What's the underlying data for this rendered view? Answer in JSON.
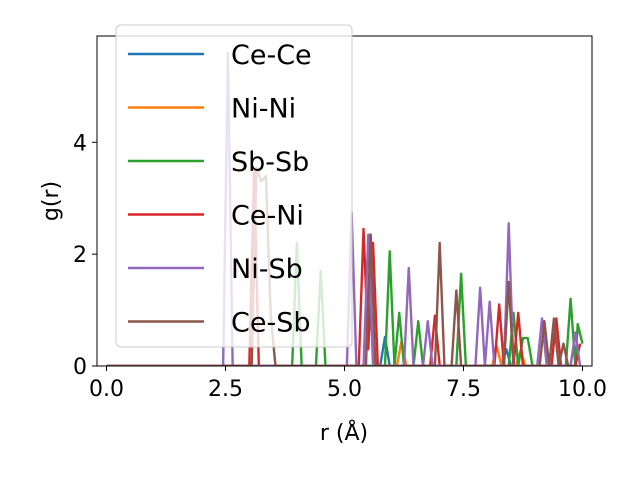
{
  "chart_data": {
    "type": "line",
    "title": "",
    "xlabel": "r (Å)",
    "ylabel": "g(r)",
    "xlim": [
      -0.2,
      10.2
    ],
    "ylim": [
      0,
      5.9
    ],
    "xticks": [
      0.0,
      2.5,
      5.0,
      7.5,
      10.0
    ],
    "xtick_labels": [
      "0.0",
      "2.5",
      "5.0",
      "7.5",
      "10.0"
    ],
    "yticks": [
      0,
      2,
      4
    ],
    "ytick_labels": [
      "0",
      "2",
      "4"
    ],
    "grid": false,
    "legend_position": "top-left",
    "series": [
      {
        "name": "Ce-Ce",
        "color": "#1f77b4",
        "points": [
          [
            0,
            0
          ],
          [
            5.75,
            0
          ],
          [
            5.85,
            0.52
          ],
          [
            5.95,
            0
          ],
          [
            8.3,
            0
          ],
          [
            8.4,
            0.3
          ],
          [
            8.5,
            0
          ],
          [
            9.9,
            0
          ]
        ]
      },
      {
        "name": "Ni-Ni",
        "color": "#ff7f0e",
        "points": [
          [
            0,
            0
          ],
          [
            6.1,
            0
          ],
          [
            6.2,
            0.45
          ],
          [
            6.3,
            0
          ],
          [
            8.1,
            0
          ],
          [
            8.2,
            0.35
          ],
          [
            8.3,
            0
          ],
          [
            8.6,
            0
          ],
          [
            8.7,
            0.28
          ],
          [
            8.8,
            0
          ],
          [
            9.9,
            0
          ]
        ]
      },
      {
        "name": "Sb-Sb",
        "color": "#2ca02c",
        "points": [
          [
            0,
            0
          ],
          [
            3.9,
            0
          ],
          [
            4.0,
            2.2
          ],
          [
            4.1,
            0
          ],
          [
            4.4,
            0
          ],
          [
            4.5,
            1.7
          ],
          [
            4.6,
            0
          ],
          [
            5.85,
            0
          ],
          [
            5.95,
            2.05
          ],
          [
            6.05,
            0
          ],
          [
            6.15,
            0.95
          ],
          [
            6.25,
            0
          ],
          [
            6.45,
            0
          ],
          [
            6.55,
            0.8
          ],
          [
            6.65,
            0
          ],
          [
            7.35,
            0
          ],
          [
            7.45,
            1.65
          ],
          [
            7.55,
            0
          ],
          [
            8.45,
            0
          ],
          [
            8.55,
            0.95
          ],
          [
            8.65,
            0
          ],
          [
            8.75,
            0.5
          ],
          [
            8.85,
            0.5
          ],
          [
            8.95,
            0
          ],
          [
            9.65,
            0
          ],
          [
            9.75,
            1.2
          ],
          [
            9.85,
            0
          ],
          [
            9.9,
            0.75
          ],
          [
            10.0,
            0.4
          ]
        ]
      },
      {
        "name": "Ce-Ni",
        "color": "#d62728",
        "points": [
          [
            0,
            0
          ],
          [
            3.0,
            0
          ],
          [
            3.1,
            3.5
          ],
          [
            3.2,
            0
          ],
          [
            5.3,
            0
          ],
          [
            5.4,
            2.45
          ],
          [
            5.5,
            0.3
          ],
          [
            5.6,
            2.2
          ],
          [
            5.7,
            0
          ],
          [
            6.8,
            0
          ],
          [
            6.9,
            0.9
          ],
          [
            7.0,
            0
          ],
          [
            8.15,
            0
          ],
          [
            8.25,
            1.1
          ],
          [
            8.35,
            0
          ],
          [
            8.55,
            0
          ],
          [
            8.65,
            0.95
          ],
          [
            8.75,
            0
          ],
          [
            9.35,
            0
          ],
          [
            9.45,
            0.85
          ],
          [
            9.55,
            0
          ],
          [
            9.85,
            0
          ],
          [
            9.95,
            0.4
          ]
        ]
      },
      {
        "name": "Ni-Sb",
        "color": "#9467bd",
        "points": [
          [
            0,
            0
          ],
          [
            2.45,
            0
          ],
          [
            2.55,
            5.6
          ],
          [
            2.65,
            0
          ],
          [
            5.05,
            0
          ],
          [
            5.15,
            2.75
          ],
          [
            5.25,
            0
          ],
          [
            5.4,
            0
          ],
          [
            5.5,
            2.35
          ],
          [
            5.6,
            0
          ],
          [
            6.25,
            0
          ],
          [
            6.35,
            1.75
          ],
          [
            6.45,
            0
          ],
          [
            6.65,
            0
          ],
          [
            6.75,
            0.8
          ],
          [
            6.85,
            0
          ],
          [
            7.75,
            0
          ],
          [
            7.85,
            1.4
          ],
          [
            7.95,
            0
          ],
          [
            8.05,
            1.15
          ],
          [
            8.15,
            0
          ],
          [
            8.35,
            0
          ],
          [
            8.45,
            2.55
          ],
          [
            8.55,
            0
          ],
          [
            9.05,
            0
          ],
          [
            9.15,
            0.85
          ],
          [
            9.25,
            0
          ],
          [
            9.75,
            0
          ],
          [
            9.85,
            0.6
          ],
          [
            9.95,
            0
          ]
        ]
      },
      {
        "name": "Ce-Sb",
        "color": "#8c564b",
        "points": [
          [
            0,
            0
          ],
          [
            3.05,
            0
          ],
          [
            3.15,
            3.55
          ],
          [
            3.25,
            3.3
          ],
          [
            3.35,
            3.4
          ],
          [
            3.45,
            0.9
          ],
          [
            3.55,
            0
          ],
          [
            5.45,
            0
          ],
          [
            5.55,
            2.35
          ],
          [
            5.65,
            0
          ],
          [
            6.9,
            0
          ],
          [
            7.0,
            2.2
          ],
          [
            7.1,
            0
          ],
          [
            7.25,
            0
          ],
          [
            7.35,
            1.35
          ],
          [
            7.45,
            0
          ],
          [
            8.35,
            0
          ],
          [
            8.45,
            1.5
          ],
          [
            8.55,
            0
          ],
          [
            9.1,
            0
          ],
          [
            9.2,
            0.8
          ],
          [
            9.3,
            0
          ],
          [
            9.4,
            0.85
          ],
          [
            9.5,
            0
          ],
          [
            9.6,
            0.4
          ],
          [
            9.7,
            0
          ],
          [
            9.9,
            0
          ]
        ]
      }
    ]
  }
}
